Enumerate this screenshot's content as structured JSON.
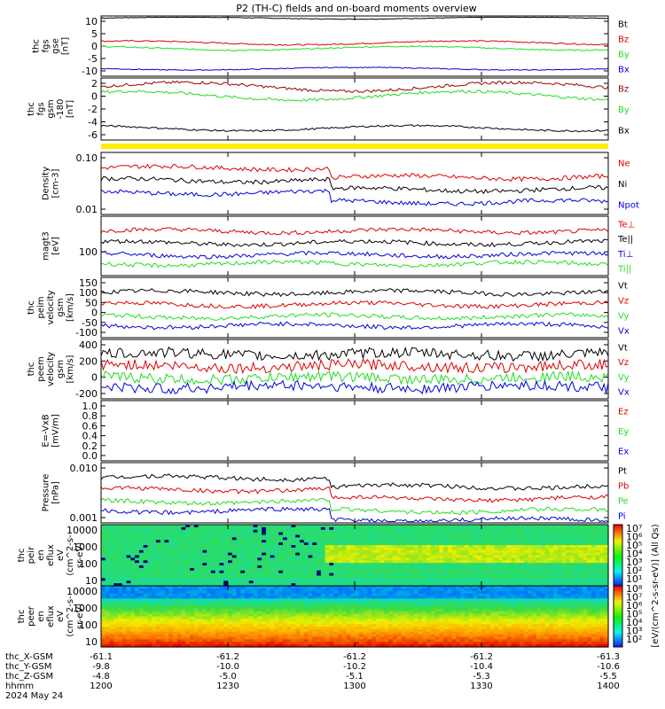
{
  "title": "P2 (TH-C) fields and on-board moments overview",
  "colors": {
    "black": "#000000",
    "red": "#dd0000",
    "dred": "#990000",
    "green": "#22dd22",
    "blue": "#0000dd",
    "yellow": "#ffee00"
  },
  "chart_data": [
    {
      "type": "line",
      "id": "fgs_gse",
      "ylabel": [
        "thc",
        "fgs",
        "gse",
        "[nT]"
      ],
      "yticks": [
        "10",
        "5",
        "0",
        "-5",
        "-10"
      ],
      "ylim": [
        -14,
        14
      ],
      "series": [
        {
          "name": "Bt",
          "color": "#000000",
          "level": 13,
          "noise": 0.3
        },
        {
          "name": "Bz",
          "color": "#dd0000",
          "level": 1.5,
          "noise": 0.6
        },
        {
          "name": "By",
          "color": "#22dd22",
          "level": -1,
          "noise": 0.6
        },
        {
          "name": "Bx",
          "color": "#0000dd",
          "level": -10.5,
          "noise": 0.4
        }
      ]
    },
    {
      "type": "line",
      "id": "fgs_gsm",
      "ylabel": [
        "thc",
        "fgs",
        "gsm",
        "-180",
        "[nT]"
      ],
      "yticks": [
        "2",
        "0",
        "-2",
        "-4",
        "-6"
      ],
      "ylim": [
        -7.5,
        3
      ],
      "series": [
        {
          "name": "Bz",
          "color": "#990000",
          "level": 1.5,
          "noise": 0.5
        },
        {
          "name": "By",
          "color": "#22dd22",
          "level": 0,
          "noise": 0.5
        },
        {
          "name": "Bx",
          "color": "#000000",
          "level": -5.5,
          "noise": 0.3
        }
      ]
    },
    {
      "type": "line",
      "id": "density",
      "ylabel": [
        "Density",
        "[cm-3]"
      ],
      "yticks": [
        "0.10",
        "0.01"
      ],
      "scale": "log",
      "series": [
        {
          "name": "Ne",
          "color": "#dd0000"
        },
        {
          "name": "Ni",
          "color": "#000000"
        },
        {
          "name": "Npot",
          "color": "#0000dd"
        }
      ]
    },
    {
      "type": "line",
      "id": "temp",
      "ylabel": [
        "magt3",
        "[eV]"
      ],
      "yticks": [
        "100"
      ],
      "scale": "log",
      "series": [
        {
          "name": "Te⊥",
          "color": "#dd0000"
        },
        {
          "name": "Te||",
          "color": "#000000"
        },
        {
          "name": "Ti⊥",
          "color": "#0000dd"
        },
        {
          "name": "Ti||",
          "color": "#22dd22"
        }
      ]
    },
    {
      "type": "line",
      "id": "peim_vel",
      "ylabel": [
        "thc",
        "peim",
        "velocity",
        "gsm",
        "[km/s]"
      ],
      "yticks": [
        "150",
        "100",
        "50",
        "0",
        "-50",
        "-100"
      ],
      "ylim": [
        -150,
        160
      ],
      "series": [
        {
          "name": "Vt",
          "color": "#000000"
        },
        {
          "name": "Vz",
          "color": "#dd0000"
        },
        {
          "name": "Vy",
          "color": "#22dd22"
        },
        {
          "name": "Vx",
          "color": "#0000dd"
        }
      ]
    },
    {
      "type": "line",
      "id": "peem_vel",
      "ylabel": [
        "thc",
        "peem",
        "velocity",
        "gsm",
        "[km/s]"
      ],
      "yticks": [
        "400",
        "200",
        "0",
        "-200"
      ],
      "ylim": [
        -260,
        420
      ],
      "series": [
        {
          "name": "Vt",
          "color": "#000000"
        },
        {
          "name": "Vz",
          "color": "#dd0000"
        },
        {
          "name": "Vy",
          "color": "#22dd22"
        },
        {
          "name": "Vx",
          "color": "#0000dd"
        }
      ]
    },
    {
      "type": "line",
      "id": "efield",
      "ylabel": [
        "E=-VxB",
        "[mV/m]"
      ],
      "yticks": [
        "1.0",
        "0.8",
        "0.6",
        "0.4",
        "0.2",
        "0.0"
      ],
      "ylim": [
        0,
        1
      ],
      "series": [
        {
          "name": "Ez",
          "color": "#dd0000"
        },
        {
          "name": "Ey",
          "color": "#22dd22"
        },
        {
          "name": "Ex",
          "color": "#0000dd"
        }
      ]
    },
    {
      "type": "line",
      "id": "pressure",
      "ylabel": [
        "Pressure",
        "[nPa]"
      ],
      "yticks": [
        "0.010",
        "0.001"
      ],
      "scale": "log",
      "series": [
        {
          "name": "Pt",
          "color": "#000000"
        },
        {
          "name": "Pb",
          "color": "#dd0000"
        },
        {
          "name": "Pe",
          "color": "#22dd22"
        },
        {
          "name": "Pi",
          "color": "#0000dd"
        }
      ]
    },
    {
      "type": "heatmap",
      "id": "peir",
      "ylabel": [
        "thc",
        "peir",
        "en",
        "eflux",
        "eV",
        "(cm^2-s-",
        "sr-eV)"
      ],
      "yticks": [
        "10000",
        "1000",
        "100",
        "10"
      ]
    },
    {
      "type": "heatmap",
      "id": "peer",
      "ylabel": [
        "thc",
        "peer",
        "en",
        "eflux",
        "eV",
        "(cm^2-s-",
        "sr-eV)"
      ],
      "yticks": [
        "10000",
        "1000",
        "100",
        "10"
      ]
    }
  ],
  "colorbar": {
    "ticks": [
      "10⁷",
      "10⁶",
      "10⁵",
      "10⁴",
      "10³",
      "10²",
      "10¹",
      "10⁸",
      "10⁷",
      "10⁶",
      "10⁵",
      "10⁴",
      "10³",
      "10²"
    ],
    "label": "[eV/(cm^2-s-sr-eV)] (All Qs)"
  },
  "xaxis": {
    "rows": [
      {
        "label": "thc_X-GSM",
        "values": [
          "-61.1",
          "-61.2",
          "-61.2",
          "-61.2",
          "-61.3"
        ]
      },
      {
        "label": "thc_Y-GSM",
        "values": [
          "-9.8",
          "-10.0",
          "-10.2",
          "-10.4",
          "-10.6"
        ]
      },
      {
        "label": "thc_Z-GSM",
        "values": [
          "-4.8",
          "-5.0",
          "-5.1",
          "-5.3",
          "-5.5"
        ]
      },
      {
        "label": "hhmm",
        "values": [
          "1200",
          "1230",
          "1300",
          "1330",
          "1400"
        ]
      }
    ],
    "date": "2024 May 24"
  }
}
